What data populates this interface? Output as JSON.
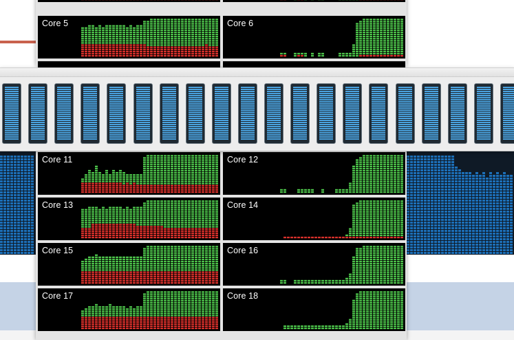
{
  "app": "Activity Monitor",
  "colors": {
    "user_load": "#4cc24a",
    "system_load": "#d9302b",
    "usage_bar_fill": "#4aa3e0",
    "bg_bar_fill": "#1c6fb8"
  },
  "cpu_history_back": {
    "cores": [
      {
        "label": "Core 5",
        "user": [
          0.78,
          0.78,
          0.82,
          0.84,
          0.8,
          0.82,
          0.8,
          0.83,
          0.84,
          0.86,
          0.84,
          0.82,
          0.84,
          0.8,
          0.82,
          0.8,
          0.82,
          0.84,
          0.94,
          0.96,
          0.98,
          0.98,
          0.98,
          0.98,
          0.98,
          0.98,
          0.98,
          0.98,
          0.98,
          0.98,
          0.98,
          0.98,
          0.98,
          0.98,
          0.98,
          0.98,
          0.98,
          0.98,
          0.98,
          0.98
        ],
        "system": [
          0.35,
          0.35,
          0.36,
          0.36,
          0.35,
          0.36,
          0.35,
          0.36,
          0.35,
          0.36,
          0.35,
          0.36,
          0.35,
          0.34,
          0.35,
          0.34,
          0.33,
          0.32,
          0.32,
          0.3,
          0.3,
          0.3,
          0.3,
          0.3,
          0.3,
          0.3,
          0.3,
          0.3,
          0.3,
          0.3,
          0.3,
          0.3,
          0.3,
          0.3,
          0.3,
          0.3,
          0.32,
          0.3,
          0.3,
          0.3
        ]
      },
      {
        "label": "Core 6",
        "user": [
          0,
          0,
          0,
          0,
          0.1,
          0.1,
          0,
          0,
          0.1,
          0.1,
          0.1,
          0.1,
          0,
          0.1,
          0,
          0.1,
          0.1,
          0,
          0,
          0,
          0,
          0.1,
          0.1,
          0.1,
          0.1,
          0.35,
          0.9,
          0.96,
          0.98,
          0.98,
          0.98,
          0.98,
          0.98,
          0.98,
          0.98,
          0.98,
          0.98,
          0.98,
          0.98,
          0.98
        ],
        "system": [
          0,
          0,
          0,
          0,
          0.05,
          0.05,
          0,
          0,
          0,
          0.05,
          0.05,
          0,
          0,
          0,
          0,
          0,
          0,
          0,
          0,
          0,
          0,
          0,
          0,
          0,
          0,
          0,
          0,
          0.03,
          0.05,
          0.05,
          0.05,
          0.05,
          0.05,
          0.05,
          0.05,
          0.05,
          0.05,
          0.05,
          0.05,
          0.05
        ]
      }
    ]
  },
  "cpu_history_front": {
    "cores": [
      {
        "label": "Core 11",
        "user": [
          0.4,
          0.5,
          0.62,
          0.58,
          0.7,
          0.55,
          0.5,
          0.62,
          0.5,
          0.6,
          0.55,
          0.62,
          0.58,
          0.5,
          0.48,
          0.5,
          0.52,
          0.5,
          0.96,
          0.98,
          0.98,
          0.98,
          0.98,
          0.98,
          0.98,
          0.98,
          0.98,
          0.98,
          0.98,
          0.98,
          0.98,
          0.98,
          0.98,
          0.98,
          0.98,
          0.98,
          0.98,
          0.98,
          0.98,
          0.98
        ],
        "system": [
          0.3,
          0.28,
          0.3,
          0.3,
          0.28,
          0.3,
          0.28,
          0.3,
          0.28,
          0.3,
          0.28,
          0.26,
          0.24,
          0.26,
          0.24,
          0.26,
          0.24,
          0.24,
          0.24,
          0.24,
          0.24,
          0.24,
          0.24,
          0.24,
          0.24,
          0.24,
          0.24,
          0.24,
          0.24,
          0.24,
          0.24,
          0.24,
          0.24,
          0.24,
          0.24,
          0.24,
          0.24,
          0.24,
          0.24,
          0.24
        ]
      },
      {
        "label": "Core 12",
        "user": [
          0,
          0,
          0,
          0,
          0.1,
          0.1,
          0,
          0,
          0,
          0.1,
          0.1,
          0.1,
          0.1,
          0.1,
          0,
          0,
          0.1,
          0,
          0,
          0,
          0.1,
          0.1,
          0.1,
          0.1,
          0.25,
          0.7,
          0.9,
          0.96,
          0.98,
          0.98,
          0.98,
          0.98,
          0.98,
          0.98,
          0.98,
          0.98,
          0.98,
          0.98,
          0.98,
          0.98
        ],
        "system": [
          0,
          0,
          0,
          0,
          0,
          0,
          0,
          0,
          0,
          0,
          0,
          0,
          0,
          0,
          0,
          0,
          0,
          0,
          0,
          0,
          0,
          0,
          0,
          0,
          0,
          0,
          0,
          0,
          0,
          0,
          0,
          0,
          0,
          0,
          0,
          0,
          0,
          0,
          0,
          0
        ]
      },
      {
        "label": "Core 13",
        "user": [
          0.8,
          0.8,
          0.82,
          0.84,
          0.82,
          0.8,
          0.82,
          0.8,
          0.84,
          0.82,
          0.84,
          0.82,
          0.8,
          0.82,
          0.8,
          0.84,
          0.82,
          0.86,
          0.96,
          0.98,
          0.98,
          0.98,
          0.98,
          0.98,
          0.98,
          0.98,
          0.98,
          0.98,
          0.98,
          0.98,
          0.98,
          0.98,
          0.98,
          0.98,
          0.98,
          0.98,
          0.98,
          0.98,
          0.98,
          0.98
        ],
        "system": [
          0.3,
          0.3,
          0.3,
          0.4,
          0.4,
          0.4,
          0.4,
          0.4,
          0.4,
          0.4,
          0.4,
          0.4,
          0.4,
          0.4,
          0.4,
          0.38,
          0.36,
          0.34,
          0.34,
          0.32,
          0.32,
          0.32,
          0.32,
          0.32,
          0.3,
          0.3,
          0.3,
          0.3,
          0.3,
          0.3,
          0.3,
          0.3,
          0.3,
          0.3,
          0.3,
          0.3,
          0.3,
          0.3,
          0.3,
          0.3
        ]
      },
      {
        "label": "Core 14",
        "user": [
          0,
          0,
          0,
          0,
          0,
          0.05,
          0.05,
          0.05,
          0.05,
          0.05,
          0.05,
          0.05,
          0.05,
          0.05,
          0.05,
          0.05,
          0.05,
          0.05,
          0.05,
          0.05,
          0.05,
          0.05,
          0.05,
          0.1,
          0.3,
          0.9,
          0.96,
          0.98,
          0.98,
          0.98,
          0.98,
          0.98,
          0.98,
          0.98,
          0.98,
          0.98,
          0.98,
          0.98,
          0.98,
          0.98
        ],
        "system": [
          0,
          0,
          0,
          0,
          0,
          0.05,
          0.05,
          0.05,
          0.05,
          0.05,
          0.05,
          0.05,
          0.05,
          0.05,
          0.05,
          0.05,
          0.05,
          0.05,
          0.05,
          0.05,
          0.05,
          0.05,
          0.05,
          0.05,
          0.05,
          0.05,
          0.05,
          0.05,
          0.05,
          0.05,
          0.05,
          0.05,
          0.05,
          0.05,
          0.05,
          0.05,
          0.05,
          0.05,
          0.05,
          0.05
        ]
      },
      {
        "label": "Core 15",
        "user": [
          0.6,
          0.65,
          0.72,
          0.7,
          0.75,
          0.7,
          0.72,
          0.7,
          0.74,
          0.72,
          0.7,
          0.74,
          0.72,
          0.7,
          0.72,
          0.74,
          0.72,
          0.7,
          0.96,
          0.98,
          0.98,
          0.98,
          0.98,
          0.98,
          0.98,
          0.98,
          0.98,
          0.98,
          0.98,
          0.98,
          0.98,
          0.98,
          0.98,
          0.98,
          0.98,
          0.98,
          0.98,
          0.98,
          0.98,
          0.98
        ],
        "system": [
          0.34,
          0.34,
          0.34,
          0.34,
          0.34,
          0.34,
          0.34,
          0.34,
          0.34,
          0.34,
          0.34,
          0.34,
          0.34,
          0.34,
          0.32,
          0.32,
          0.32,
          0.32,
          0.32,
          0.32,
          0.32,
          0.32,
          0.32,
          0.32,
          0.32,
          0.32,
          0.32,
          0.32,
          0.32,
          0.32,
          0.32,
          0.32,
          0.32,
          0.32,
          0.32,
          0.32,
          0.32,
          0.32,
          0.32,
          0.32
        ]
      },
      {
        "label": "Core 16",
        "user": [
          0,
          0,
          0,
          0,
          0.1,
          0.1,
          0,
          0,
          0.1,
          0.1,
          0.1,
          0.1,
          0.1,
          0.1,
          0.1,
          0.1,
          0.1,
          0.1,
          0.1,
          0.1,
          0.1,
          0.1,
          0.1,
          0.15,
          0.3,
          0.7,
          0.92,
          0.96,
          0.98,
          0.98,
          0.98,
          0.98,
          0.98,
          0.98,
          0.98,
          0.98,
          0.98,
          0.98,
          0.98,
          0.98
        ],
        "system": [
          0,
          0,
          0,
          0,
          0,
          0,
          0,
          0,
          0,
          0,
          0,
          0,
          0,
          0,
          0,
          0,
          0,
          0,
          0,
          0,
          0,
          0,
          0,
          0,
          0,
          0,
          0,
          0,
          0,
          0,
          0,
          0,
          0,
          0,
          0,
          0,
          0,
          0,
          0,
          0
        ]
      },
      {
        "label": "Core 17",
        "user": [
          0.5,
          0.55,
          0.62,
          0.6,
          0.66,
          0.6,
          0.62,
          0.6,
          0.64,
          0.62,
          0.6,
          0.62,
          0.6,
          0.58,
          0.6,
          0.58,
          0.6,
          0.62,
          0.96,
          0.98,
          0.98,
          0.98,
          0.98,
          0.98,
          0.98,
          0.98,
          0.98,
          0.98,
          0.98,
          0.98,
          0.98,
          0.98,
          0.98,
          0.98,
          0.98,
          0.98,
          0.98,
          0.98,
          0.98,
          0.98
        ],
        "system": [
          0.32,
          0.32,
          0.32,
          0.32,
          0.32,
          0.32,
          0.32,
          0.32,
          0.32,
          0.32,
          0.32,
          0.32,
          0.32,
          0.32,
          0.32,
          0.32,
          0.32,
          0.32,
          0.32,
          0.32,
          0.32,
          0.32,
          0.32,
          0.32,
          0.32,
          0.32,
          0.32,
          0.32,
          0.32,
          0.32,
          0.32,
          0.32,
          0.32,
          0.32,
          0.32,
          0.32,
          0.32,
          0.32,
          0.32,
          0.32
        ]
      },
      {
        "label": "Core 18",
        "user": [
          0,
          0,
          0,
          0,
          0,
          0.1,
          0.1,
          0.1,
          0.1,
          0.1,
          0.1,
          0.1,
          0.1,
          0.1,
          0.1,
          0.1,
          0.1,
          0.1,
          0.1,
          0.1,
          0.1,
          0.1,
          0.1,
          0.15,
          0.3,
          0.8,
          0.94,
          0.98,
          0.98,
          0.98,
          0.98,
          0.98,
          0.98,
          0.98,
          0.98,
          0.98,
          0.98,
          0.98,
          0.98,
          0.98
        ],
        "system": [
          0,
          0,
          0,
          0,
          0,
          0,
          0,
          0,
          0,
          0,
          0,
          0,
          0,
          0,
          0,
          0,
          0,
          0,
          0,
          0,
          0,
          0,
          0,
          0,
          0,
          0,
          0,
          0,
          0,
          0,
          0,
          0,
          0,
          0,
          0,
          0,
          0,
          0,
          0,
          0
        ]
      }
    ]
  },
  "cpu_usage": {
    "bars": [
      1,
      1,
      1,
      1,
      1,
      1,
      1,
      1,
      1,
      1,
      1,
      1,
      1,
      1,
      1,
      1,
      1,
      1,
      1,
      1
    ]
  },
  "background": {
    "left_panel_level": 0.95,
    "right_panel_levels": [
      0.95,
      0.95,
      0.95,
      0.95,
      0.95,
      0.95,
      0.95,
      0.95,
      0.95,
      0.95,
      0.95,
      0.95,
      0.95,
      0.95,
      0.85,
      0.82,
      0.8,
      0.78,
      0.78,
      0.76,
      0.78,
      0.75,
      0.78,
      0.74,
      0.8,
      0.76,
      0.78,
      0.76,
      0.78,
      0.75
    ]
  }
}
